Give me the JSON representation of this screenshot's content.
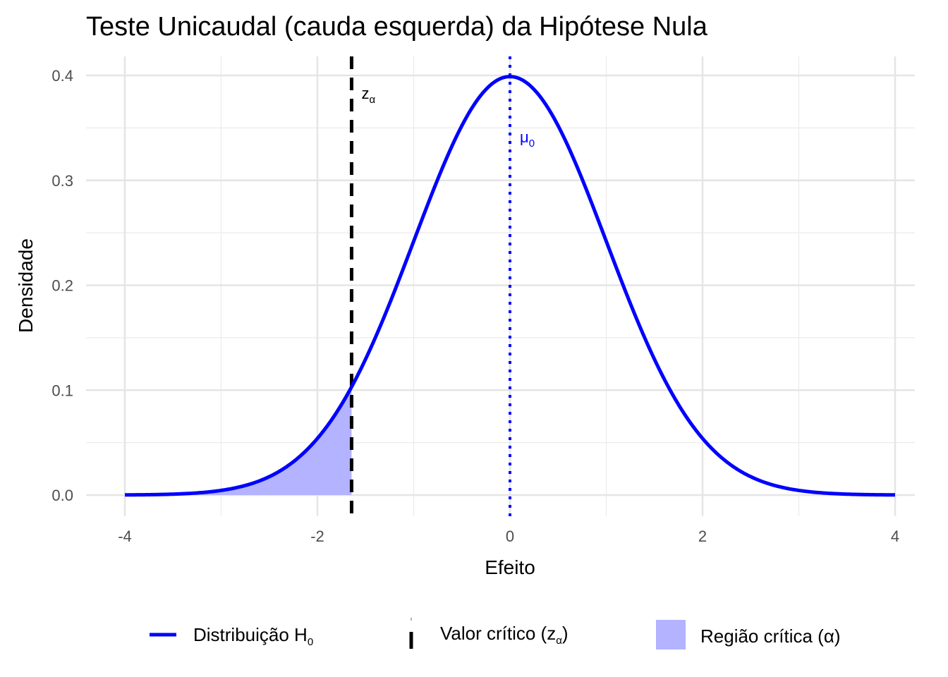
{
  "chart_data": {
    "type": "area",
    "title": "Teste Unicaudal (cauda esquerda) da Hipótese Nula",
    "xlabel": "Efeito",
    "ylabel": "Densidade",
    "xlim": [
      -4,
      4
    ],
    "ylim": [
      0,
      0.4
    ],
    "x_ticks": [
      "-4",
      "-2",
      "0",
      "2",
      "4"
    ],
    "y_ticks": [
      "0.0",
      "0.1",
      "0.2",
      "0.3",
      "0.4"
    ],
    "grid": true,
    "series": [
      {
        "name": "Distribuição H0",
        "distribution": "normal",
        "mean": 0,
        "sd": 1,
        "color": "#0000ff"
      }
    ],
    "critical_value": -1.645,
    "null_mean": 0,
    "critical_region": {
      "from": -4,
      "to": -1.645,
      "color": "#b3b3ff"
    },
    "annotations": {
      "z_alpha": {
        "base": "z",
        "sub": "α"
      },
      "mu0": {
        "base": "μ",
        "sub": "0"
      }
    },
    "legend": {
      "position": "bottom",
      "items": [
        {
          "base": "Distribuição H",
          "sub": "0",
          "tail": ""
        },
        {
          "base": "Valor crítico (z",
          "sub": "α",
          "tail": ")"
        },
        {
          "base": "Região crítica (α)",
          "sub": "",
          "tail": ""
        }
      ]
    }
  }
}
